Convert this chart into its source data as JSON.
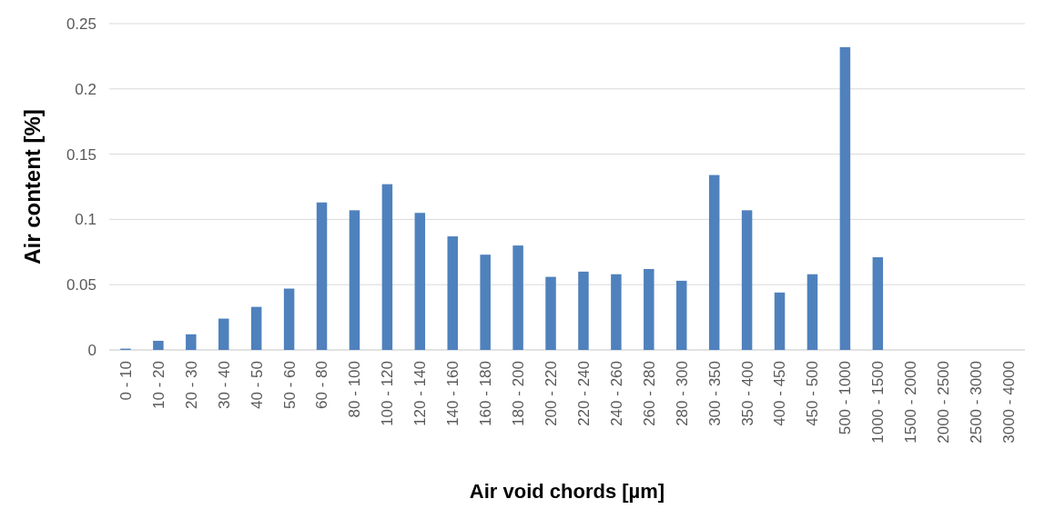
{
  "chart_data": {
    "type": "bar",
    "xlabel": "Air void chords [µm]",
    "ylabel": "Air content [%]",
    "categories": [
      "0 - 10",
      "10 - 20",
      "20 - 30",
      "30 - 40",
      "40 - 50",
      "50 - 60",
      "60 - 80",
      "80 - 100",
      "100 - 120",
      "120 - 140",
      "140 - 160",
      "160 - 180",
      "180 - 200",
      "200 - 220",
      "220 - 240",
      "240 - 260",
      "260 - 280",
      "280 - 300",
      "300 - 350",
      "350 - 400",
      "400 - 450",
      "450 - 500",
      "500 - 1000",
      "1000 - 1500",
      "1500 - 2000",
      "2000 - 2500",
      "2500 - 3000",
      "3000 - 4000"
    ],
    "values": [
      0.001,
      0.007,
      0.012,
      0.024,
      0.033,
      0.047,
      0.113,
      0.107,
      0.127,
      0.105,
      0.087,
      0.073,
      0.08,
      0.056,
      0.06,
      0.058,
      0.062,
      0.053,
      0.134,
      0.107,
      0.044,
      0.058,
      0.232,
      0.071,
      0,
      0,
      0,
      0
    ],
    "color": "#4f81bd",
    "ylim": [
      0,
      0.25
    ],
    "yticks": [
      0,
      0.05,
      0.1,
      0.15,
      0.2,
      0.25
    ],
    "grid": "y"
  }
}
